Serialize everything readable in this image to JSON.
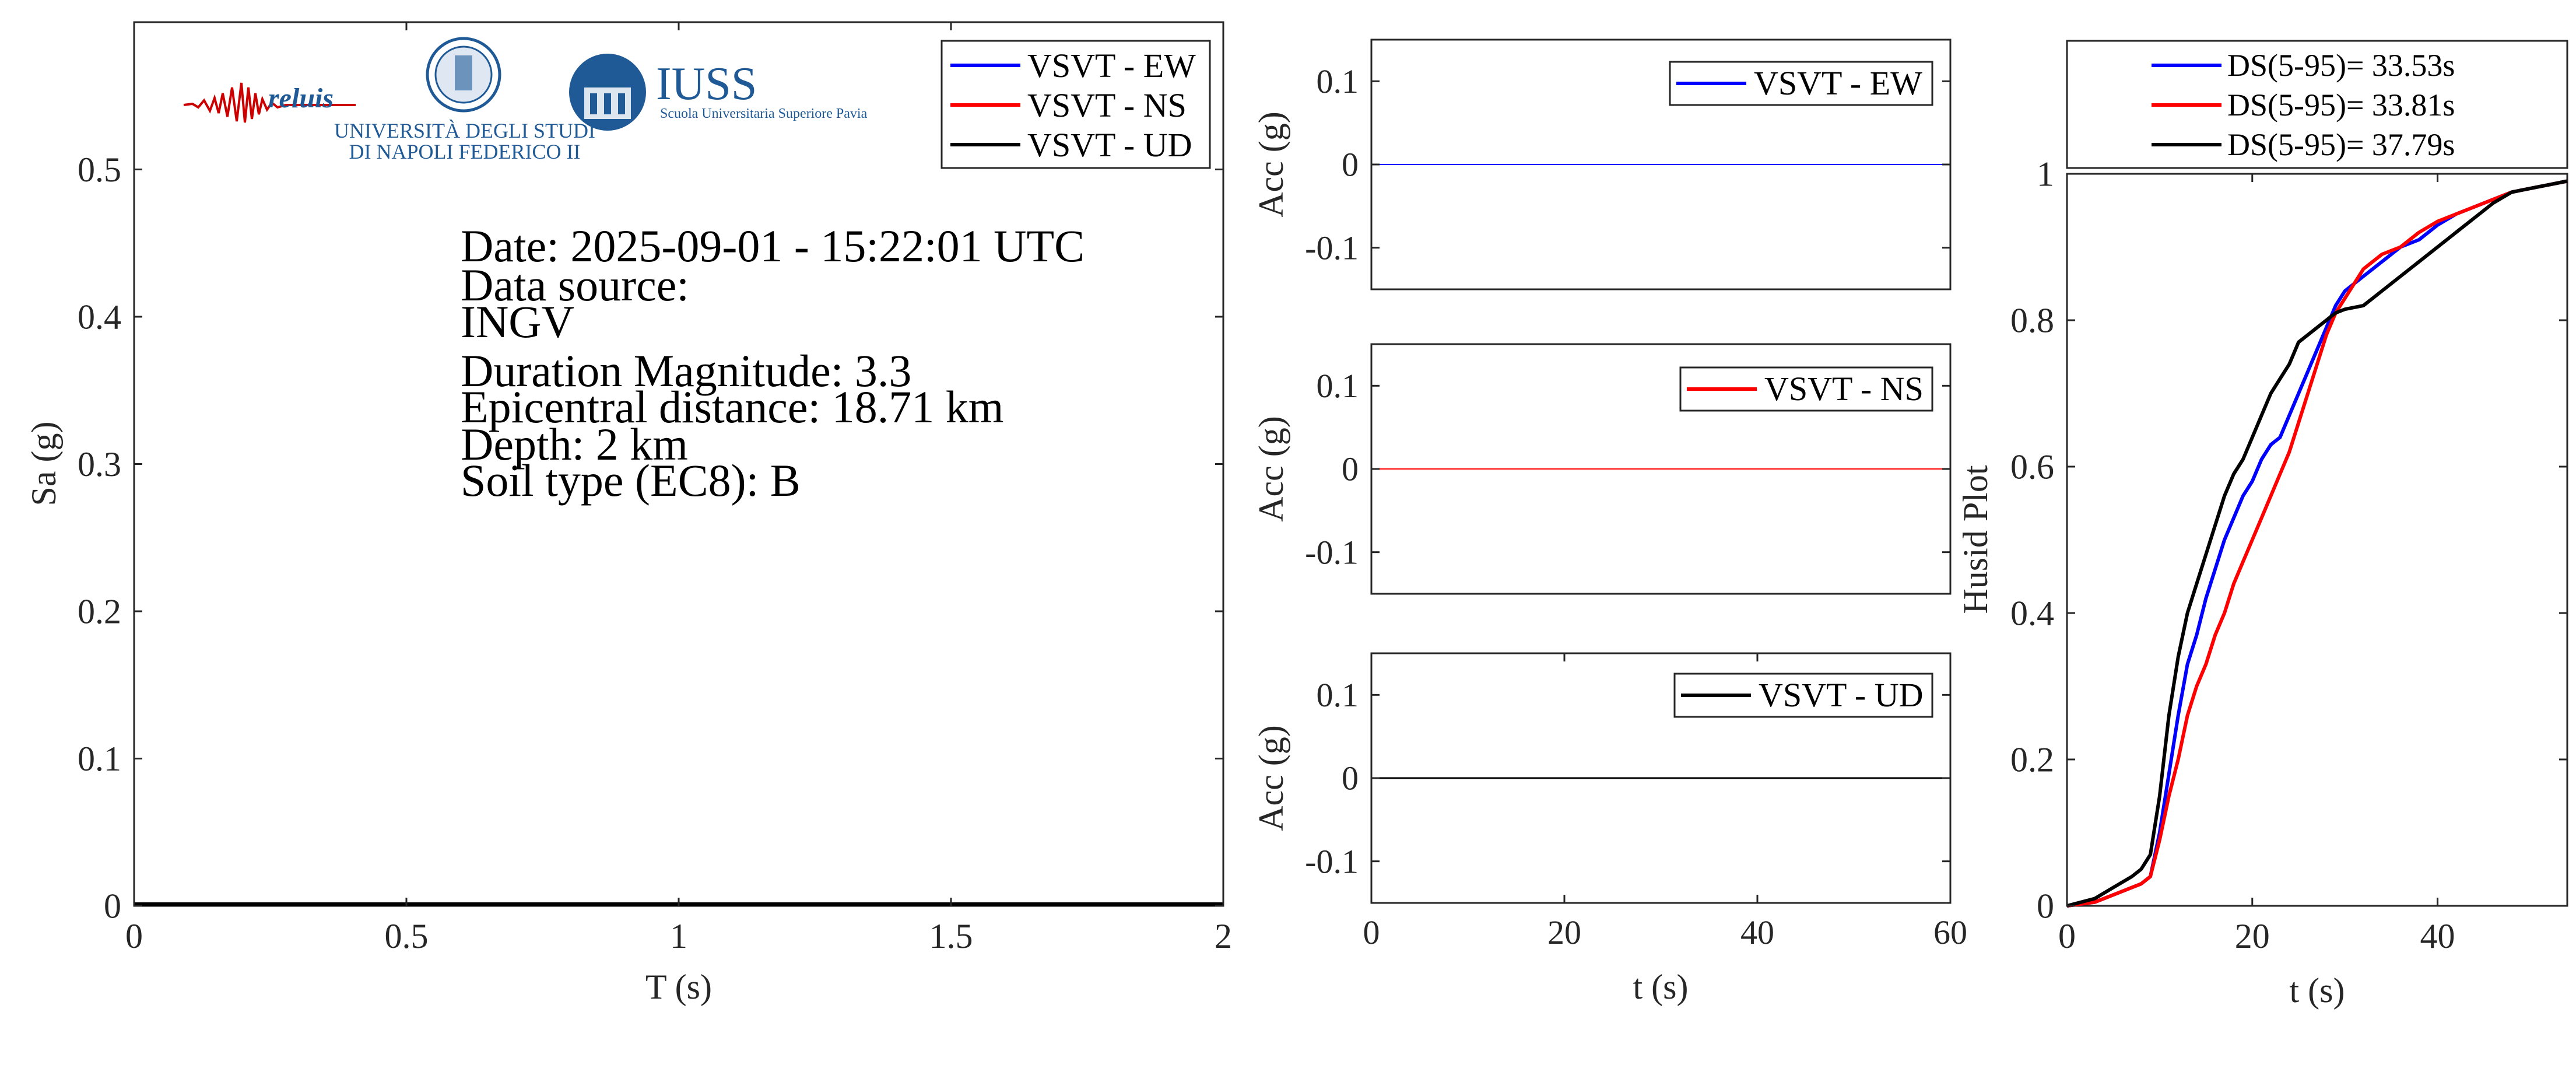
{
  "colors": {
    "ew": "#0000ff",
    "ns": "#ff0000",
    "ud": "#000000",
    "axis": "#262626",
    "logo_blue": "#1f5a96",
    "logo_red": "#cc0000"
  },
  "logos": {
    "reluis": "reluis",
    "unina_line1": "UNIVERSITÀ DEGLI STUDI",
    "unina_line2": "DI NAPOLI FEDERICO II",
    "iuss_title": "IUSS",
    "iuss_subtitle": "Scuola Universitaria Superiore Pavia"
  },
  "info": {
    "date": "Date: 2025-09-01 - 15:22:01 UTC",
    "source_label": "Data source:",
    "source": "INGV",
    "magnitude": "Duration Magnitude: 3.3",
    "distance": "Epicentral distance: 18.71 km",
    "depth": "Depth: 2 km",
    "soil": "Soil type (EC8): B"
  },
  "chart_data": [
    {
      "type": "line",
      "id": "spectrum",
      "xlabel": "T (s)",
      "ylabel": "Sa (g)",
      "xlim": [
        0,
        2
      ],
      "ylim": [
        0,
        0.6
      ],
      "xticks": [
        0,
        0.5,
        1,
        1.5,
        2
      ],
      "xtick_labels": [
        "0",
        "0.5",
        "1",
        "1.5",
        "2"
      ],
      "yticks": [
        0,
        0.1,
        0.2,
        0.3,
        0.4,
        0.5
      ],
      "ytick_labels": [
        "0",
        "0.1",
        "0.2",
        "0.3",
        "0.4",
        "0.5"
      ],
      "legend_position": "top-right",
      "series": [
        {
          "name": "VSVT - EW",
          "color": "#0000ff",
          "x": [
            0,
            2
          ],
          "y": [
            0.001,
            0.001
          ]
        },
        {
          "name": "VSVT - NS",
          "color": "#ff0000",
          "x": [
            0,
            2
          ],
          "y": [
            0.001,
            0.001
          ]
        },
        {
          "name": "VSVT - UD",
          "color": "#000000",
          "x": [
            0,
            2
          ],
          "y": [
            0.001,
            0.001
          ]
        }
      ]
    },
    {
      "type": "line",
      "id": "acc_ew",
      "xlabel": "",
      "ylabel": "Acc (g)",
      "xlim": [
        0,
        60
      ],
      "ylim": [
        -0.15,
        0.15
      ],
      "yticks": [
        -0.1,
        0,
        0.1
      ],
      "ytick_labels": [
        "-0.1",
        "0",
        "0.1"
      ],
      "legend_position": "top-right",
      "series": [
        {
          "name": "VSVT - EW",
          "color": "#0000ff",
          "x": [
            0,
            60
          ],
          "y": [
            0,
            0
          ]
        }
      ]
    },
    {
      "type": "line",
      "id": "acc_ns",
      "xlabel": "",
      "ylabel": "Acc (g)",
      "xlim": [
        0,
        60
      ],
      "ylim": [
        -0.15,
        0.15
      ],
      "yticks": [
        -0.1,
        0,
        0.1
      ],
      "ytick_labels": [
        "-0.1",
        "0",
        "0.1"
      ],
      "legend_position": "top-right",
      "series": [
        {
          "name": "VSVT - NS",
          "color": "#ff0000",
          "x": [
            0,
            60
          ],
          "y": [
            0,
            0
          ]
        }
      ]
    },
    {
      "type": "line",
      "id": "acc_ud",
      "xlabel": "t (s)",
      "ylabel": "Acc (g)",
      "xlim": [
        0,
        60
      ],
      "ylim": [
        -0.15,
        0.15
      ],
      "xticks": [
        0,
        20,
        40,
        60
      ],
      "xtick_labels": [
        "0",
        "20",
        "40",
        "60"
      ],
      "yticks": [
        -0.1,
        0,
        0.1
      ],
      "ytick_labels": [
        "-0.1",
        "0",
        "0.1"
      ],
      "legend_position": "top-right",
      "series": [
        {
          "name": "VSVT - UD",
          "color": "#000000",
          "x": [
            0,
            60
          ],
          "y": [
            0,
            0
          ]
        }
      ]
    },
    {
      "type": "line",
      "id": "husid",
      "xlabel": "t (s)",
      "ylabel": "Husid Plot",
      "xlim": [
        0,
        54
      ],
      "ylim": [
        0,
        1
      ],
      "xticks": [
        0,
        20,
        40
      ],
      "xtick_labels": [
        "0",
        "20",
        "40"
      ],
      "yticks": [
        0,
        0.2,
        0.4,
        0.6,
        0.8,
        1
      ],
      "ytick_labels": [
        "0",
        "0.2",
        "0.4",
        "0.6",
        "0.8",
        "1"
      ],
      "legend_position": "above",
      "series": [
        {
          "name": "DS(5-95)= 33.53s",
          "color": "#0000ff",
          "x": [
            0,
            3,
            5,
            7,
            8,
            9,
            10,
            11,
            12,
            13,
            14,
            15,
            16,
            17,
            18,
            19,
            20,
            21,
            22,
            23,
            24,
            25,
            26,
            27,
            28,
            29,
            30,
            32,
            34,
            36,
            38,
            40,
            42,
            44,
            46,
            48,
            50,
            52,
            54
          ],
          "y": [
            0,
            0.005,
            0.015,
            0.025,
            0.03,
            0.04,
            0.1,
            0.18,
            0.26,
            0.33,
            0.37,
            0.42,
            0.46,
            0.5,
            0.53,
            0.56,
            0.58,
            0.61,
            0.63,
            0.64,
            0.67,
            0.7,
            0.73,
            0.76,
            0.79,
            0.82,
            0.84,
            0.86,
            0.88,
            0.9,
            0.91,
            0.93,
            0.945,
            0.955,
            0.965,
            0.975,
            0.98,
            0.985,
            0.99
          ]
        },
        {
          "name": "DS(5-95)= 33.81s",
          "color": "#ff0000",
          "x": [
            0,
            3,
            5,
            7,
            8,
            9,
            10,
            11,
            12,
            13,
            14,
            15,
            16,
            17,
            18,
            19,
            20,
            21,
            22,
            23,
            24,
            25,
            26,
            27,
            28,
            29,
            30,
            32,
            34,
            36,
            38,
            40,
            42,
            44,
            46,
            48,
            50,
            52,
            54
          ],
          "y": [
            0,
            0.005,
            0.015,
            0.025,
            0.03,
            0.04,
            0.09,
            0.15,
            0.2,
            0.26,
            0.3,
            0.33,
            0.37,
            0.4,
            0.44,
            0.47,
            0.5,
            0.53,
            0.56,
            0.59,
            0.62,
            0.66,
            0.7,
            0.74,
            0.78,
            0.81,
            0.83,
            0.87,
            0.89,
            0.9,
            0.92,
            0.935,
            0.945,
            0.955,
            0.965,
            0.975,
            0.98,
            0.985,
            0.99
          ]
        },
        {
          "name": "DS(5-95)= 37.79s",
          "color": "#000000",
          "x": [
            0,
            3,
            5,
            7,
            8,
            9,
            10,
            11,
            12,
            13,
            14,
            15,
            16,
            17,
            18,
            19,
            20,
            21,
            22,
            23,
            24,
            25,
            26,
            27,
            28,
            29,
            30,
            32,
            34,
            36,
            38,
            40,
            42,
            44,
            46,
            48,
            50,
            52,
            54
          ],
          "y": [
            0,
            0.01,
            0.025,
            0.04,
            0.05,
            0.07,
            0.15,
            0.26,
            0.34,
            0.4,
            0.44,
            0.48,
            0.52,
            0.56,
            0.59,
            0.61,
            0.64,
            0.67,
            0.7,
            0.72,
            0.74,
            0.77,
            0.78,
            0.79,
            0.8,
            0.81,
            0.815,
            0.82,
            0.84,
            0.86,
            0.88,
            0.9,
            0.92,
            0.94,
            0.96,
            0.975,
            0.98,
            0.985,
            0.99
          ]
        }
      ]
    }
  ]
}
